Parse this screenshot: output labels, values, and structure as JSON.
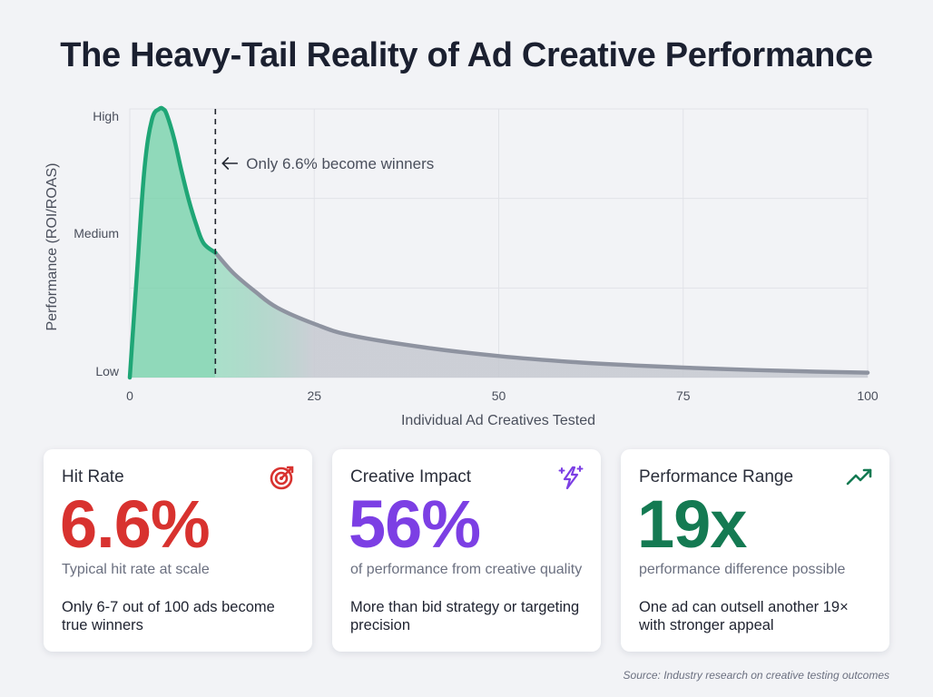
{
  "title": "The Heavy-Tail Reality of Ad Creative Performance",
  "chart_data": {
    "type": "area",
    "title": "The Heavy-Tail Reality of Ad Creative Performance",
    "xlabel": "Individual Ad Creatives Tested",
    "ylabel": "Performance (ROI/ROAS)",
    "xlim": [
      0,
      100
    ],
    "ylim": [
      0,
      1
    ],
    "x_ticks": [
      0,
      25,
      50,
      75,
      100
    ],
    "x_tick_labels": [
      "0",
      "25",
      "50",
      "75",
      "100"
    ],
    "y_tick_labels": [
      {
        "label": "Low",
        "value": 0
      },
      {
        "label": "Medium",
        "value": 0.5
      },
      {
        "label": "High",
        "value": 1
      }
    ],
    "series": [
      {
        "name": "Performance",
        "x": [
          0,
          1,
          2,
          3,
          4,
          4.5,
          5,
          6,
          7,
          8,
          9,
          10,
          11.6,
          14,
          17,
          20,
          25,
          30,
          40,
          50,
          60,
          70,
          80,
          90,
          100
        ],
        "values": [
          0,
          0.4,
          0.78,
          0.96,
          1.0,
          1.0,
          0.98,
          0.89,
          0.77,
          0.66,
          0.57,
          0.5,
          0.465,
          0.39,
          0.32,
          0.26,
          0.2,
          0.157,
          0.112,
          0.08,
          0.058,
          0.043,
          0.032,
          0.024,
          0.018
        ]
      }
    ],
    "threshold": {
      "x": 11.6,
      "label": "Only 6.6% become winners"
    },
    "colors": {
      "winner": "#1fa676",
      "winner_fill": "#6fd0a6",
      "tail": "#8e93a0",
      "tail_fill": "#c6c9d1",
      "grid": "#e1e3e8"
    }
  },
  "cards": [
    {
      "title": "Hit Rate",
      "icon": "target-icon",
      "value": "6.6%",
      "value_color": "#d8322f",
      "subtitle": "Typical hit rate at scale",
      "description": "Only 6-7 out of 100 ads become true winners"
    },
    {
      "title": "Creative Impact",
      "icon": "sparkle-bolt-icon",
      "value": "56%",
      "value_color": "#7c3fe4",
      "subtitle": "of performance from creative quality",
      "description": "More than bid strategy or targeting precision"
    },
    {
      "title": "Performance Range",
      "icon": "trending-up-icon",
      "value": "19x",
      "value_color": "#147a52",
      "subtitle": "performance difference possible",
      "description": "One ad can outsell another 19× with stronger appeal"
    }
  ],
  "source": "Source: Industry research on creative testing outcomes"
}
